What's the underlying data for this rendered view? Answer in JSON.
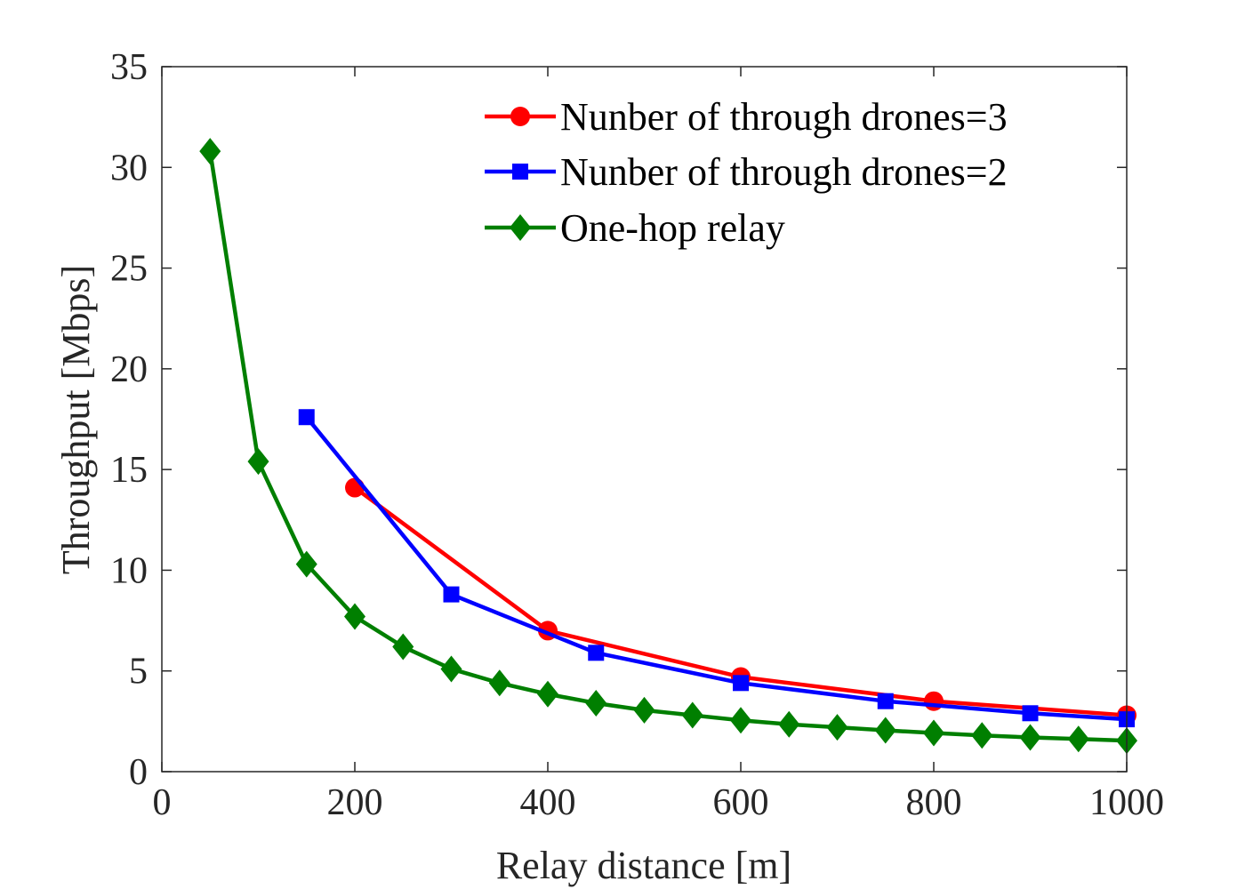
{
  "chart_data": {
    "type": "line",
    "title": "",
    "xlabel": "Relay distance  [m]",
    "ylabel": "Throughput [Mbps]",
    "xlim": [
      0,
      1000
    ],
    "ylim": [
      0,
      35
    ],
    "xticks": [
      0,
      200,
      400,
      600,
      800,
      1000
    ],
    "yticks": [
      0,
      5,
      10,
      15,
      20,
      25,
      30,
      35
    ],
    "xtick_labels": [
      "0",
      "200",
      "400",
      "600",
      "800",
      "1000"
    ],
    "ytick_labels": [
      "0",
      "5",
      "10",
      "15",
      "20",
      "25",
      "30",
      "35"
    ],
    "grid": false,
    "legend_position": "top-right",
    "series": [
      {
        "name": "Nunber of through drones=3",
        "color": "#ff0000",
        "marker": "circle",
        "x": [
          200,
          400,
          600,
          800,
          1000
        ],
        "y": [
          14.1,
          7.0,
          4.7,
          3.5,
          2.8
        ]
      },
      {
        "name": "Nunber of through drones=2",
        "color": "#0000ff",
        "marker": "square",
        "x": [
          150,
          300,
          450,
          600,
          750,
          900,
          1000
        ],
        "y": [
          17.6,
          8.8,
          5.9,
          4.4,
          3.5,
          2.9,
          2.6
        ]
      },
      {
        "name": "One-hop relay",
        "color": "#007f00",
        "marker": "diamond",
        "x": [
          50,
          100,
          150,
          200,
          250,
          300,
          350,
          400,
          450,
          500,
          550,
          600,
          650,
          700,
          750,
          800,
          850,
          900,
          950,
          1000
        ],
        "y": [
          30.8,
          15.4,
          10.3,
          7.7,
          6.2,
          5.1,
          4.4,
          3.85,
          3.4,
          3.05,
          2.8,
          2.55,
          2.35,
          2.2,
          2.05,
          1.92,
          1.8,
          1.7,
          1.62,
          1.54
        ]
      }
    ]
  }
}
